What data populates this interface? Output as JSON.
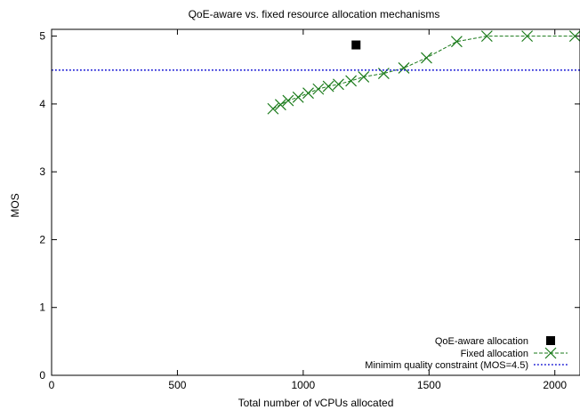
{
  "chart_data": {
    "type": "line",
    "title": "QoE-aware vs. fixed resource allocation mechanisms",
    "xlabel": "Total number of vCPUs allocated",
    "ylabel": "MOS",
    "xlim": [
      0,
      2100
    ],
    "ylim": [
      0,
      5.1
    ],
    "xticks": [
      0,
      500,
      1000,
      1500,
      2000
    ],
    "yticks": [
      0,
      1,
      2,
      3,
      4,
      5
    ],
    "legend_position": "bottom-right",
    "series": [
      {
        "name": "QoE-aware allocation",
        "kind": "point",
        "marker": "filled-square",
        "color": "#000000",
        "x": [
          1210
        ],
        "y": [
          4.87
        ]
      },
      {
        "name": "Fixed allocation",
        "kind": "line",
        "marker": "x",
        "color": "#1a7a1a",
        "x": [
          880,
          910,
          940,
          980,
          1020,
          1060,
          1100,
          1140,
          1190,
          1240,
          1320,
          1400,
          1490,
          1610,
          1730,
          1890,
          2080
        ],
        "y": [
          3.93,
          3.99,
          4.05,
          4.1,
          4.16,
          4.22,
          4.26,
          4.29,
          4.34,
          4.4,
          4.45,
          4.53,
          4.68,
          4.92,
          5.0,
          5.0,
          5.0
        ]
      },
      {
        "name": "Minimim quality constraint (MOS=4.5)",
        "kind": "hline",
        "color": "#1f1fd6",
        "y": [
          4.5
        ]
      }
    ]
  }
}
